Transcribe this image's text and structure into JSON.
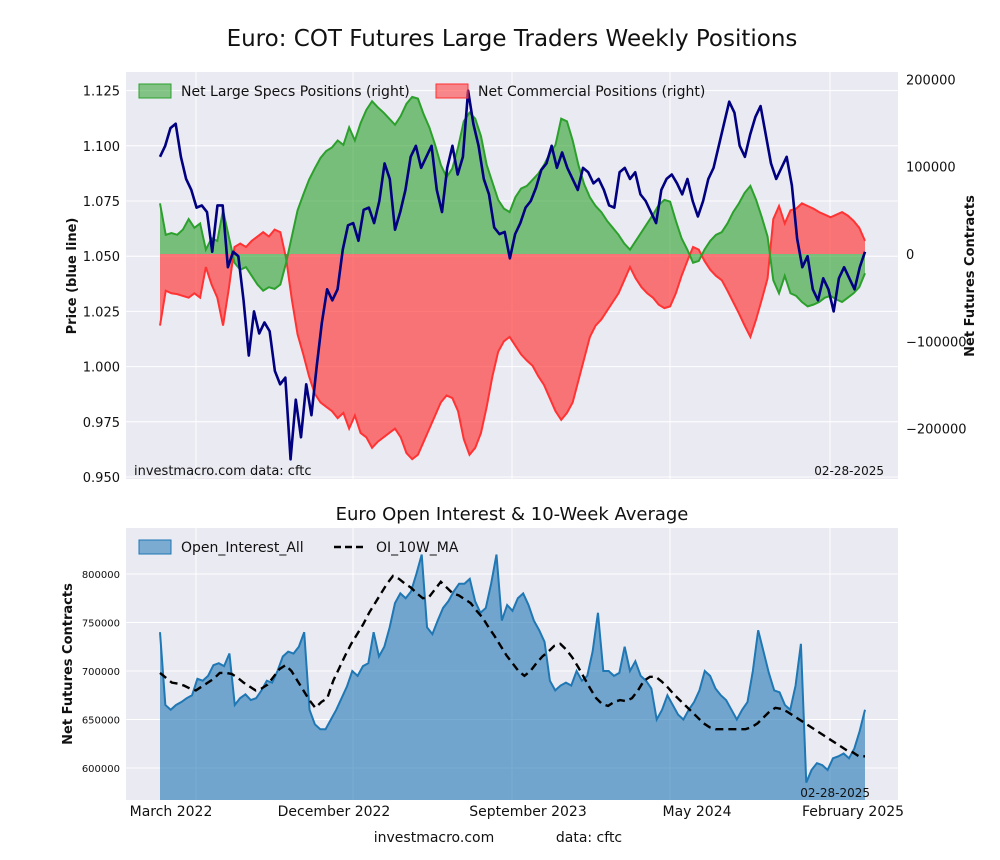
{
  "page": {
    "main_title": "Euro: COT Futures Large Traders Weekly Positions",
    "sub_title": "Euro Open Interest & 10-Week Average",
    "footer_site": "investmacro.com",
    "footer_data": "data: cftc"
  },
  "chart_data": [
    {
      "type": "area",
      "title": "Euro: COT Futures Large Traders Weekly Positions",
      "ylabel_left": "Price (blue line)",
      "ylabel_right": "Net Futures Contracts",
      "ylim_left": [
        0.95,
        1.13
      ],
      "ylim_right": [
        -240000,
        200000
      ],
      "yticks_left": [
        "1.125",
        "1.100",
        "1.075",
        "1.050",
        "1.025",
        "1.000",
        "0.975",
        "0.950"
      ],
      "yticks_right": [
        "200000",
        "100000",
        "0",
        "−100000",
        "−200000"
      ],
      "watermark_left": "investmacro.com   data: cftc",
      "date_stamp": "02-28-2025",
      "legend_placement": "top-left",
      "grid": true,
      "colors": {
        "specs": "#2ca02c",
        "commercial": "#ff3333",
        "price": "#000080",
        "background": "#eaeaf2"
      },
      "series": [
        {
          "name": "Net Large Specs Positions (right)",
          "values": [
            58000,
            22000,
            24000,
            22000,
            28000,
            40000,
            30000,
            35000,
            5000,
            18000,
            15000,
            50000,
            20000,
            -10000,
            -18000,
            -15000,
            -25000,
            -35000,
            -42000,
            -38000,
            -40000,
            -35000,
            -10000,
            20000,
            50000,
            68000,
            85000,
            98000,
            110000,
            118000,
            122000,
            130000,
            125000,
            145000,
            130000,
            150000,
            165000,
            175000,
            168000,
            162000,
            155000,
            148000,
            158000,
            172000,
            180000,
            178000,
            160000,
            145000,
            125000,
            102000,
            88000,
            98000,
            122000,
            152000,
            162000,
            155000,
            135000,
            102000,
            82000,
            62000,
            52000,
            48000,
            65000,
            75000,
            78000,
            85000,
            92000,
            102000,
            115000,
            125000,
            155000,
            152000,
            130000,
            102000,
            80000,
            65000,
            55000,
            48000,
            38000,
            30000,
            22000,
            12000,
            5000,
            15000,
            25000,
            35000,
            45000,
            56000,
            62000,
            60000,
            38000,
            18000,
            5000,
            -10000,
            -8000,
            5000,
            15000,
            22000,
            25000,
            35000,
            48000,
            58000,
            70000,
            78000,
            62000,
            42000,
            20000,
            -30000,
            -45000,
            -25000,
            -45000,
            -48000,
            -55000,
            -60000,
            -58000,
            -55000,
            -50000,
            -48000,
            -52000,
            -55000,
            -50000,
            -45000,
            -38000,
            -22000
          ]
        },
        {
          "name": "Net Commercial Positions (right)",
          "values": [
            -82000,
            -42000,
            -45000,
            -46000,
            -48000,
            -50000,
            -45000,
            -50000,
            -15000,
            -35000,
            -50000,
            -82000,
            -40000,
            8000,
            12000,
            8000,
            15000,
            20000,
            25000,
            20000,
            28000,
            25000,
            -5000,
            -52000,
            -92000,
            -115000,
            -140000,
            -160000,
            -170000,
            -175000,
            -180000,
            -188000,
            -182000,
            -200000,
            -185000,
            -205000,
            -210000,
            -222000,
            -215000,
            -210000,
            -205000,
            -200000,
            -210000,
            -228000,
            -235000,
            -230000,
            -215000,
            -200000,
            -185000,
            -170000,
            -162000,
            -165000,
            -180000,
            -212000,
            -230000,
            -222000,
            -205000,
            -175000,
            -140000,
            -112000,
            -100000,
            -95000,
            -105000,
            -115000,
            -122000,
            -128000,
            -140000,
            -150000,
            -165000,
            -180000,
            -190000,
            -182000,
            -170000,
            -145000,
            -120000,
            -95000,
            -82000,
            -75000,
            -65000,
            -55000,
            -45000,
            -30000,
            -15000,
            -28000,
            -38000,
            -45000,
            -50000,
            -58000,
            -62000,
            -60000,
            -45000,
            -25000,
            -8000,
            8000,
            5000,
            -8000,
            -18000,
            -25000,
            -30000,
            -42000,
            -55000,
            -68000,
            -82000,
            -95000,
            -75000,
            -52000,
            -28000,
            40000,
            55000,
            35000,
            50000,
            52000,
            58000,
            55000,
            52000,
            48000,
            45000,
            42000,
            45000,
            48000,
            44000,
            38000,
            30000,
            15000
          ]
        },
        {
          "name": "Price",
          "values": [
            1.095,
            1.1,
            1.108,
            1.11,
            1.095,
            1.085,
            1.08,
            1.072,
            1.073,
            1.07,
            1.052,
            1.073,
            1.073,
            1.045,
            1.052,
            1.05,
            1.03,
            1.005,
            1.025,
            1.015,
            1.02,
            1.016,
            0.998,
            0.992,
            0.995,
            0.958,
            0.985,
            0.968,
            0.992,
            0.978,
            1.0,
            1.02,
            1.035,
            1.03,
            1.035,
            1.053,
            1.064,
            1.065,
            1.057,
            1.071,
            1.072,
            1.065,
            1.075,
            1.092,
            1.085,
            1.062,
            1.07,
            1.08,
            1.095,
            1.1,
            1.09,
            1.095,
            1.1,
            1.08,
            1.07,
            1.09,
            1.1,
            1.087,
            1.095,
            1.125,
            1.11,
            1.1,
            1.085,
            1.078,
            1.063,
            1.06,
            1.061,
            1.049,
            1.06,
            1.065,
            1.072,
            1.075,
            1.081,
            1.089,
            1.092,
            1.1,
            1.09,
            1.097,
            1.09,
            1.085,
            1.08,
            1.09,
            1.088,
            1.083,
            1.085,
            1.08,
            1.073,
            1.072,
            1.088,
            1.09,
            1.085,
            1.088,
            1.078,
            1.075,
            1.07,
            1.065,
            1.08,
            1.085,
            1.087,
            1.083,
            1.078,
            1.085,
            1.075,
            1.068,
            1.075,
            1.085,
            1.09,
            1.1,
            1.11,
            1.12,
            1.115,
            1.1,
            1.095,
            1.105,
            1.113,
            1.118,
            1.105,
            1.092,
            1.085,
            1.09,
            1.095,
            1.082,
            1.058,
            1.045,
            1.05,
            1.035,
            1.03,
            1.04,
            1.035,
            1.025,
            1.04,
            1.045,
            1.04,
            1.035,
            1.045,
            1.052
          ]
        }
      ]
    },
    {
      "type": "area",
      "title": "Euro Open Interest & 10-Week Average",
      "ylabel": "Net Futures Contracts",
      "ylim": [
        565000,
        835000
      ],
      "yticks": [
        "800000",
        "750000",
        "700000",
        "650000",
        "600000"
      ],
      "xticks": [
        "March 2022",
        "December 2022",
        "September 2023",
        "May 2024",
        "February 2025"
      ],
      "date_stamp": "02-28-2025",
      "legend_placement": "top-left",
      "grid": true,
      "colors": {
        "area": "#1f77b4",
        "ma": "#000000",
        "background": "#eaeaf2"
      },
      "series": [
        {
          "name": "Open_Interest_All",
          "values": [
            740000,
            665000,
            660000,
            665000,
            668000,
            672000,
            675000,
            692000,
            690000,
            695000,
            706000,
            708000,
            705000,
            718000,
            665000,
            672000,
            676000,
            670000,
            672000,
            680000,
            690000,
            688000,
            700000,
            715000,
            720000,
            718000,
            725000,
            740000,
            660000,
            645000,
            640000,
            640000,
            650000,
            660000,
            672000,
            684000,
            700000,
            695000,
            705000,
            708000,
            740000,
            715000,
            725000,
            745000,
            770000,
            780000,
            775000,
            782000,
            800000,
            820000,
            745000,
            738000,
            752000,
            765000,
            772000,
            782000,
            790000,
            790000,
            795000,
            772000,
            760000,
            765000,
            790000,
            820000,
            752000,
            768000,
            762000,
            775000,
            780000,
            768000,
            752000,
            742000,
            730000,
            690000,
            680000,
            685000,
            688000,
            685000,
            700000,
            690000,
            695000,
            720000,
            760000,
            700000,
            700000,
            695000,
            698000,
            725000,
            700000,
            710000,
            695000,
            690000,
            682000,
            650000,
            660000,
            675000,
            665000,
            655000,
            650000,
            660000,
            668000,
            680000,
            700000,
            695000,
            682000,
            675000,
            670000,
            660000,
            650000,
            660000,
            668000,
            700000,
            742000,
            720000,
            698000,
            680000,
            678000,
            665000,
            660000,
            685000,
            728000,
            585000,
            598000,
            605000,
            603000,
            598000,
            610000,
            612000,
            615000,
            610000,
            620000,
            638000,
            660000
          ]
        },
        {
          "name": "OI_10W_MA",
          "values": [
            698000,
            693000,
            688000,
            687000,
            685000,
            682000,
            680000,
            684000,
            688000,
            692000,
            698000,
            698000,
            697000,
            693000,
            688000,
            684000,
            680000,
            682000,
            686000,
            694000,
            702000,
            706000,
            700000,
            690000,
            680000,
            670000,
            662000,
            668000,
            672000,
            690000,
            703000,
            716000,
            728000,
            738000,
            748000,
            760000,
            770000,
            780000,
            790000,
            798000,
            795000,
            790000,
            786000,
            780000,
            775000,
            776000,
            784000,
            792000,
            786000,
            780000,
            778000,
            774000,
            770000,
            762000,
            755000,
            745000,
            736000,
            726000,
            716000,
            708000,
            700000,
            695000,
            700000,
            708000,
            715000,
            720000,
            726000,
            728000,
            722000,
            714000,
            704000,
            693000,
            682000,
            672000,
            666000,
            664000,
            668000,
            670000,
            669000,
            672000,
            680000,
            690000,
            694000,
            694000,
            689000,
            683000,
            676000,
            670000,
            664000,
            658000,
            652000,
            646000,
            642000,
            640000,
            640000,
            640000,
            640000,
            640000,
            640000,
            642000,
            646000,
            652000,
            658000,
            662000,
            661000,
            658000,
            654000,
            650000,
            646000,
            642000,
            638000,
            634000,
            630000,
            626000,
            622000,
            618000,
            616000,
            612000,
            612000
          ]
        }
      ]
    }
  ]
}
